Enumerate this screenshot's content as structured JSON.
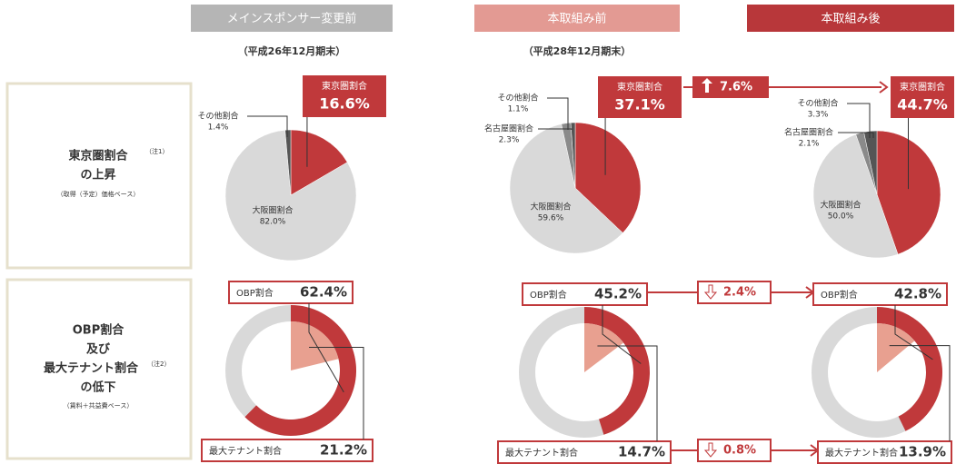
{
  "columns": [
    {
      "header": "メインスポンサー変更前",
      "date": "（平成26年12月期末）"
    },
    {
      "header": "本取組み前",
      "date": "（平成28年12月期末）"
    },
    {
      "header": "本取組み後"
    }
  ],
  "rows": [
    {
      "lines": [
        "東京圏割合",
        "の上昇"
      ],
      "note": "（注1）",
      "sub": "（取得（予定）価格ベース）"
    },
    {
      "lines": [
        "OBP割合",
        "及び",
        "最大テナント割合",
        "の低下"
      ],
      "note": "（注2）",
      "sub": "（賃料＋共益費ベース）"
    }
  ],
  "changes": [
    "7.6%",
    "2.4%",
    "0.8%"
  ],
  "chart_data": [
    {
      "type": "pie",
      "categories": [
        "東京圏割合",
        "大阪圏割合",
        "その他割合"
      ],
      "values": [
        16.6,
        82.0,
        1.4
      ],
      "value_labels": [
        "16.6%",
        "82.0%",
        "1.4%"
      ],
      "colors": [
        "#c0393b",
        "#d9d9d9",
        "#555555"
      ]
    },
    {
      "type": "pie",
      "categories": [
        "東京圏割合",
        "大阪圏割合",
        "名古屋圏割合",
        "その他割合"
      ],
      "values": [
        37.1,
        59.6,
        2.3,
        1.1
      ],
      "value_labels": [
        "37.1%",
        "59.6%",
        "2.3%",
        "1.1%"
      ],
      "colors": [
        "#c0393b",
        "#d9d9d9",
        "#8a8a8a",
        "#555555"
      ]
    },
    {
      "type": "pie",
      "categories": [
        "東京圏割合",
        "大阪圏割合",
        "名古屋圏割合",
        "その他割合"
      ],
      "values": [
        44.7,
        50.0,
        2.1,
        3.3
      ],
      "value_labels": [
        "44.7%",
        "50.0%",
        "2.1%",
        "3.3%"
      ],
      "colors": [
        "#c0393b",
        "#d9d9d9",
        "#8a8a8a",
        "#555555"
      ]
    },
    {
      "type": "donut",
      "categories": [
        "OBP割合",
        "最大テナント割合"
      ],
      "values": [
        62.4,
        21.2
      ],
      "value_labels": [
        "62.4%",
        "21.2%"
      ],
      "colors": [
        "#c0393b",
        "#e8a090"
      ]
    },
    {
      "type": "donut",
      "categories": [
        "OBP割合",
        "最大テナント割合"
      ],
      "values": [
        45.2,
        14.7
      ],
      "value_labels": [
        "45.2%",
        "14.7%"
      ],
      "colors": [
        "#c0393b",
        "#e8a090"
      ]
    },
    {
      "type": "donut",
      "categories": [
        "OBP割合",
        "最大テナント割合"
      ],
      "values": [
        42.8,
        13.9
      ],
      "value_labels": [
        "42.8%",
        "13.9%"
      ],
      "colors": [
        "#c0393b",
        "#e8a090"
      ]
    }
  ]
}
